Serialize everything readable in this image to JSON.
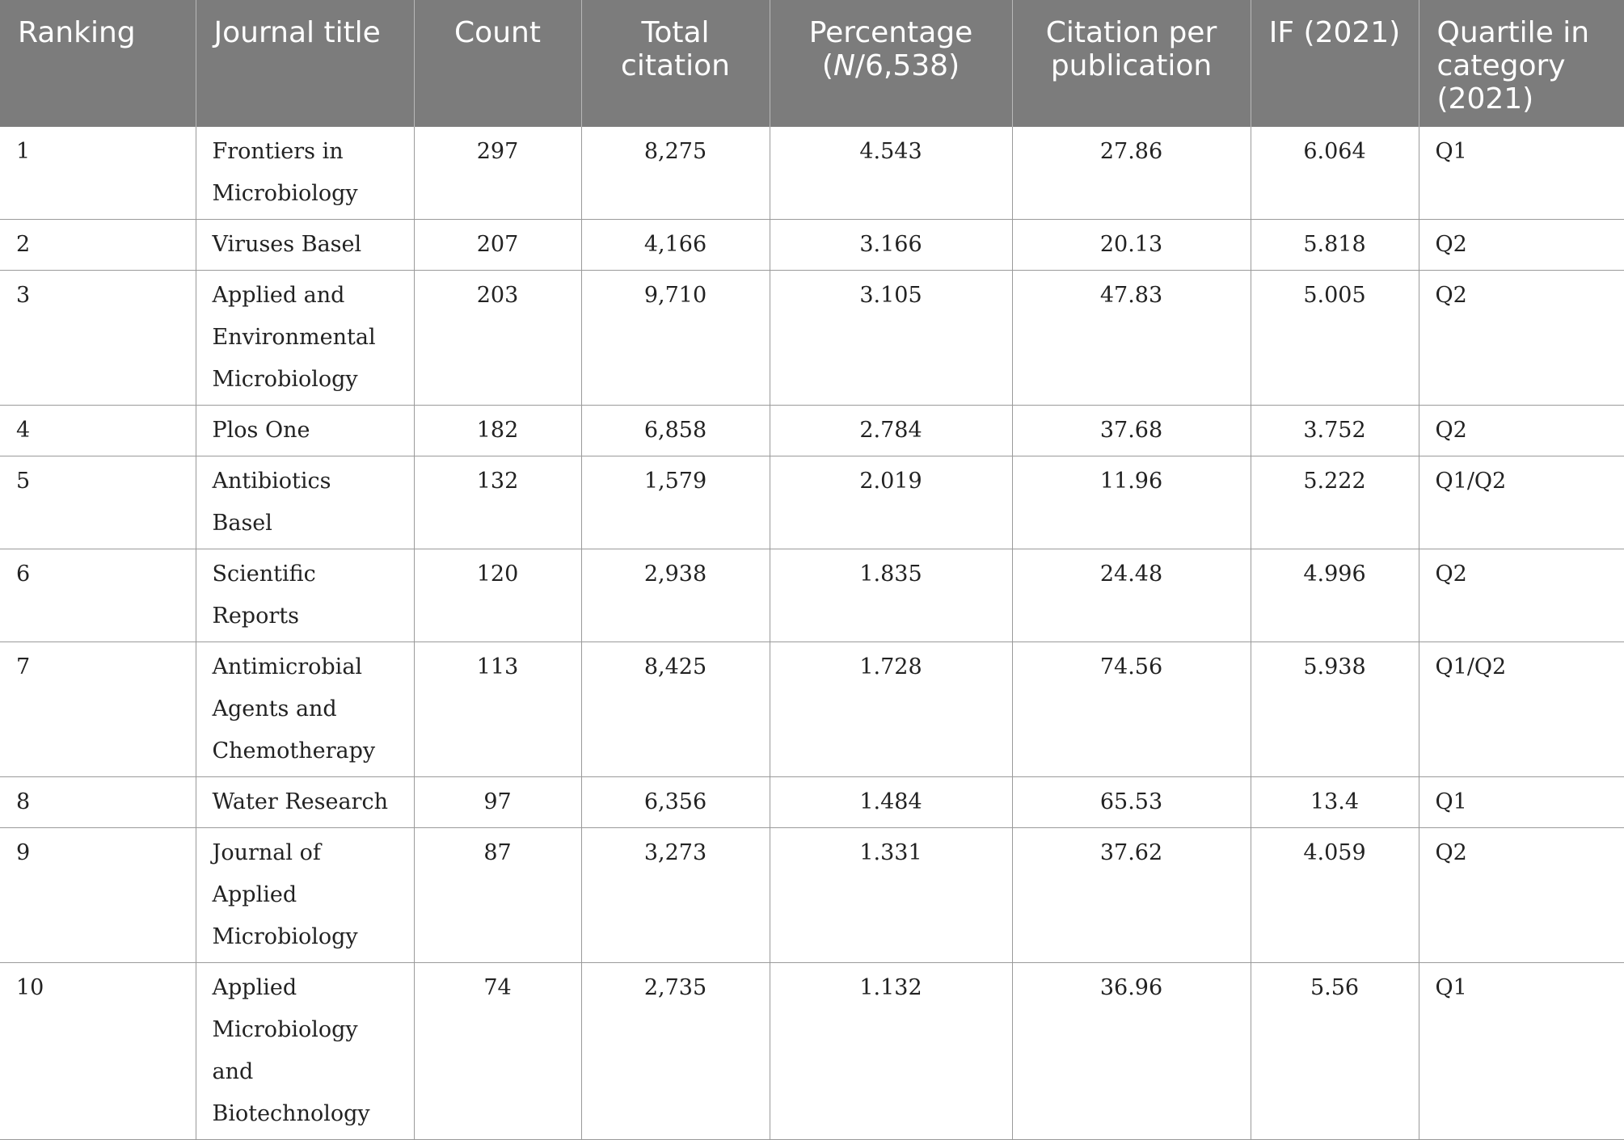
{
  "table": {
    "headers": [
      {
        "label": "Ranking"
      },
      {
        "label": "Journal title"
      },
      {
        "label": "Count"
      },
      {
        "label": "Total citation"
      },
      {
        "label_pre": "Percentage (",
        "label_ital": "N",
        "label_post": "/6,538)"
      },
      {
        "label": "Citation per publication"
      },
      {
        "label": "IF (2021)"
      },
      {
        "label": "Quartile in category (2021)"
      }
    ],
    "rows": [
      {
        "ranking": "1",
        "journal": "Frontiers in Microbiology",
        "count": "297",
        "total_citation": "8,275",
        "percentage": "4.543",
        "citation_per_pub": "27.86",
        "if2021": "6.064",
        "quartile": "Q1"
      },
      {
        "ranking": "2",
        "journal": "Viruses Basel",
        "count": "207",
        "total_citation": "4,166",
        "percentage": "3.166",
        "citation_per_pub": "20.13",
        "if2021": "5.818",
        "quartile": "Q2"
      },
      {
        "ranking": "3",
        "journal": "Applied and Environmental Microbiology",
        "count": "203",
        "total_citation": "9,710",
        "percentage": "3.105",
        "citation_per_pub": "47.83",
        "if2021": "5.005",
        "quartile": "Q2"
      },
      {
        "ranking": "4",
        "journal": "Plos One",
        "count": "182",
        "total_citation": "6,858",
        "percentage": "2.784",
        "citation_per_pub": "37.68",
        "if2021": "3.752",
        "quartile": "Q2"
      },
      {
        "ranking": "5",
        "journal": "Antibiotics Basel",
        "count": "132",
        "total_citation": "1,579",
        "percentage": "2.019",
        "citation_per_pub": "11.96",
        "if2021": "5.222",
        "quartile": "Q1/Q2"
      },
      {
        "ranking": "6",
        "journal": "Scientific Reports",
        "count": "120",
        "total_citation": "2,938",
        "percentage": "1.835",
        "citation_per_pub": "24.48",
        "if2021": "4.996",
        "quartile": "Q2"
      },
      {
        "ranking": "7",
        "journal": "Antimicrobial Agents and Chemotherapy",
        "count": "113",
        "total_citation": "8,425",
        "percentage": "1.728",
        "citation_per_pub": "74.56",
        "if2021": "5.938",
        "quartile": "Q1/Q2"
      },
      {
        "ranking": "8",
        "journal": "Water Research",
        "count": "97",
        "total_citation": "6,356",
        "percentage": "1.484",
        "citation_per_pub": "65.53",
        "if2021": "13.4",
        "quartile": "Q1"
      },
      {
        "ranking": "9",
        "journal": "Journal of Applied Microbiology",
        "count": "87",
        "total_citation": "3,273",
        "percentage": "1.331",
        "citation_per_pub": "37.62",
        "if2021": "4.059",
        "quartile": "Q2"
      },
      {
        "ranking": "10",
        "journal": "Applied Microbiology and Biotechnology",
        "count": "74",
        "total_citation": "2,735",
        "percentage": "1.132",
        "citation_per_pub": "36.96",
        "if2021": "5.56",
        "quartile": "Q1"
      }
    ]
  }
}
